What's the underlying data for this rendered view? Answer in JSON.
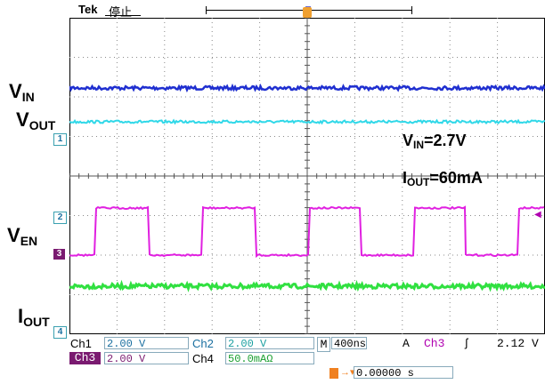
{
  "header": {
    "brand": "Tek",
    "status": "停止"
  },
  "labels": {
    "vin": {
      "main": "V",
      "sub": "IN"
    },
    "vout": {
      "main": "V",
      "sub": "OUT"
    },
    "ven": {
      "main": "V",
      "sub": "EN"
    },
    "iout": {
      "main": "I",
      "sub": "OUT"
    }
  },
  "annotations": {
    "vin": {
      "main": "V",
      "sub": "IN",
      "rest": "=2.7V"
    },
    "iout": {
      "main": "I",
      "sub": "OUT",
      "rest": "=60mA"
    }
  },
  "channel_markers": {
    "ch1": "1",
    "ch2": "2",
    "ch3": "3",
    "ch4": "4"
  },
  "readouts": {
    "ch1": {
      "label": "Ch1",
      "value": "2.00 V"
    },
    "ch2": {
      "label": "Ch2",
      "value": "2.00 V"
    },
    "ch3": {
      "label": "Ch3",
      "value": "2.00 V"
    },
    "ch4": {
      "label": "Ch4",
      "value": "50.0mAΩ"
    },
    "timebase": {
      "label": "M",
      "value": "400ns"
    },
    "trigger": {
      "mode": "A",
      "source": "Ch3",
      "slope": "ʃ",
      "level": "2.12 V"
    },
    "position": {
      "value": "0.00000 s"
    }
  },
  "colors": {
    "vin": "#1f2fd0",
    "vout": "#30d8e8",
    "ven": "#e020e0",
    "iout": "#30e040",
    "grid": "#8a8a8a",
    "frame": "#000000"
  }
}
